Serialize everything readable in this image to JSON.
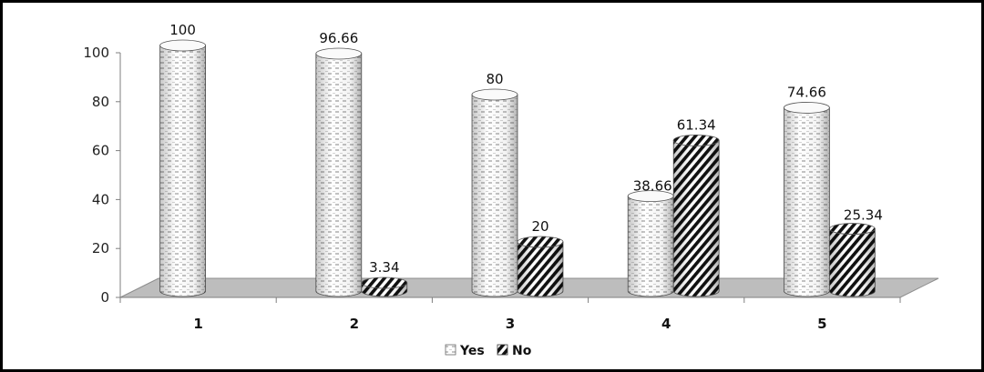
{
  "chart_data": {
    "type": "bar",
    "categories": [
      "1",
      "2",
      "3",
      "4",
      "5"
    ],
    "series": [
      {
        "name": "Yes",
        "values": [
          100,
          96.66,
          80,
          38.66,
          74.66
        ],
        "label_text": [
          "100",
          "96.66",
          "80",
          "38.66",
          "74.66"
        ]
      },
      {
        "name": "No",
        "values": [
          0,
          3.34,
          20,
          61.34,
          25.34
        ],
        "label_text": [
          "",
          "3.34",
          "20",
          "61.34",
          "25.34"
        ]
      }
    ],
    "ylim": [
      0,
      100
    ],
    "yticks": [
      "0",
      "20",
      "40",
      "60",
      "80",
      "100"
    ],
    "grid": false,
    "legend_position": "bottom",
    "style": "3d-cylinder"
  },
  "colors": {
    "frame": "#000000",
    "floor": "#bdbdbd",
    "axis": "#7f7f7f",
    "yes_fill": "#ffffff",
    "no_fill": "#000000"
  }
}
